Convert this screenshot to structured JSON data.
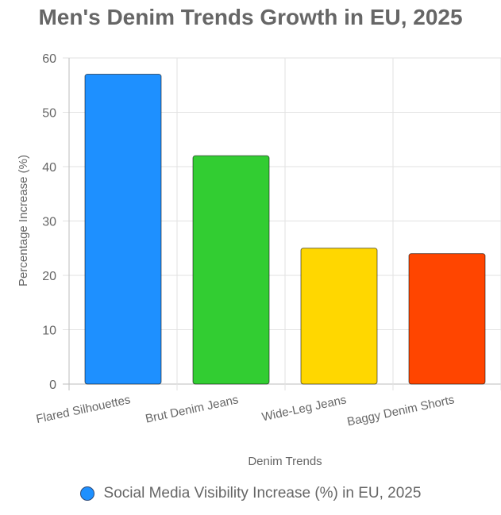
{
  "chart_data": {
    "type": "bar",
    "title": "Men's Denim Trends Growth in EU, 2025",
    "xlabel": "Denim Trends",
    "ylabel": "Percentage Increase (%)",
    "categories": [
      "Flared Silhouettes",
      "Brut Denim Jeans",
      "Wide-Leg Jeans",
      "Baggy Denim Shorts"
    ],
    "series": [
      {
        "name": "Social Media Visibility Increase (%) in EU, 2025",
        "values": [
          57,
          42,
          25,
          24
        ]
      }
    ],
    "bar_colors": [
      "#1e90ff",
      "#32cd32",
      "#ffd700",
      "#ff4500"
    ],
    "legend_color": "#1e90ff",
    "ylim": [
      0,
      60
    ],
    "yticks": [
      0,
      10,
      20,
      30,
      40,
      50,
      60
    ],
    "grid": true,
    "legend_position": "bottom"
  }
}
